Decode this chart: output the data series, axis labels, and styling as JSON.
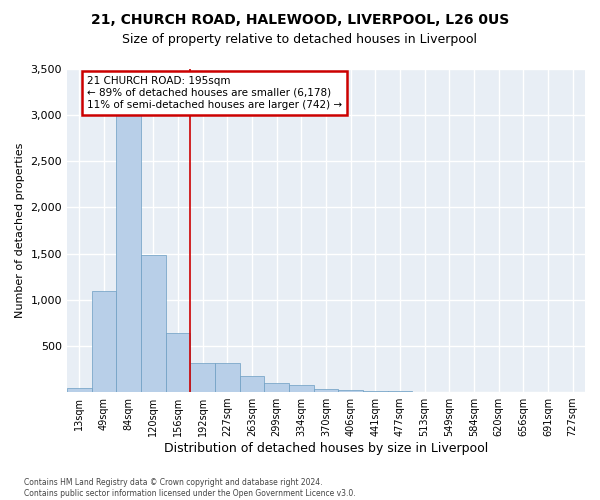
{
  "title1": "21, CHURCH ROAD, HALEWOOD, LIVERPOOL, L26 0US",
  "title2": "Size of property relative to detached houses in Liverpool",
  "xlabel": "Distribution of detached houses by size in Liverpool",
  "ylabel": "Number of detached properties",
  "categories": [
    "13sqm",
    "49sqm",
    "84sqm",
    "120sqm",
    "156sqm",
    "192sqm",
    "227sqm",
    "263sqm",
    "299sqm",
    "334sqm",
    "370sqm",
    "406sqm",
    "441sqm",
    "477sqm",
    "513sqm",
    "549sqm",
    "584sqm",
    "620sqm",
    "656sqm",
    "691sqm",
    "727sqm"
  ],
  "values": [
    40,
    1100,
    3000,
    1490,
    640,
    320,
    320,
    170,
    100,
    80,
    30,
    20,
    10,
    15,
    2,
    2,
    1,
    1,
    1,
    1,
    1
  ],
  "bar_color": "#b8cfe8",
  "bar_edge_color": "#6b9dc2",
  "annotation_text": "21 CHURCH ROAD: 195sqm\n← 89% of detached houses are smaller (6,178)\n11% of semi-detached houses are larger (742) →",
  "annotation_box_facecolor": "#ffffff",
  "annotation_box_edge": "#cc0000",
  "vline_color": "#cc0000",
  "fig_facecolor": "#ffffff",
  "axes_facecolor": "#e8eef5",
  "grid_color": "#ffffff",
  "footer": "Contains HM Land Registry data © Crown copyright and database right 2024.\nContains public sector information licensed under the Open Government Licence v3.0.",
  "ylim": [
    0,
    3500
  ],
  "yticks": [
    0,
    500,
    1000,
    1500,
    2000,
    2500,
    3000,
    3500
  ],
  "title1_fontsize": 10,
  "title2_fontsize": 9,
  "ylabel_fontsize": 8,
  "xlabel_fontsize": 9,
  "tick_fontsize": 8,
  "xtick_fontsize": 7,
  "footer_fontsize": 5.5,
  "annot_fontsize": 7.5,
  "vline_x_index": 5
}
